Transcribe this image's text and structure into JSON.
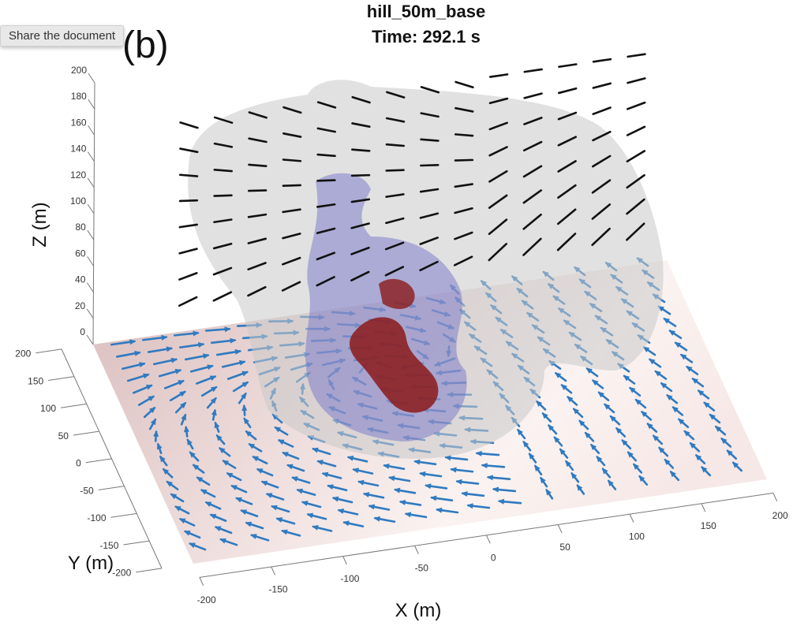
{
  "tooltip": {
    "text": "Share the document"
  },
  "panel_label": "(b)",
  "chart_data": {
    "type": "quiver3d",
    "title": [
      "hill_50m_base",
      "Time: 292.1 s"
    ],
    "xlabel": "X (m)",
    "ylabel": "Y (m)",
    "zlabel": "Z (m)",
    "xlim": [
      -200,
      200
    ],
    "ylim": [
      -200,
      200
    ],
    "zlim": [
      0,
      200
    ],
    "xticks": [
      "-200",
      "-150",
      "-100",
      "-50",
      "0",
      "50",
      "100",
      "150",
      "200"
    ],
    "yticks": [
      "-200",
      "-150",
      "-100",
      "-50",
      "0",
      "50",
      "100",
      "150",
      "200"
    ],
    "zticks": [
      "0",
      "20",
      "40",
      "60",
      "80",
      "100",
      "120",
      "140",
      "160",
      "180",
      "200"
    ],
    "grid": false,
    "colors": {
      "near_surface_arrows": "#2f7ac0",
      "upper_arrows": "#111111",
      "outer_isosurface": "#c8c8c8",
      "middle_isosurface": "#6a6ac8",
      "core_isosurface": "#8b1a1a",
      "floor": "#e9d4d2"
    }
  }
}
